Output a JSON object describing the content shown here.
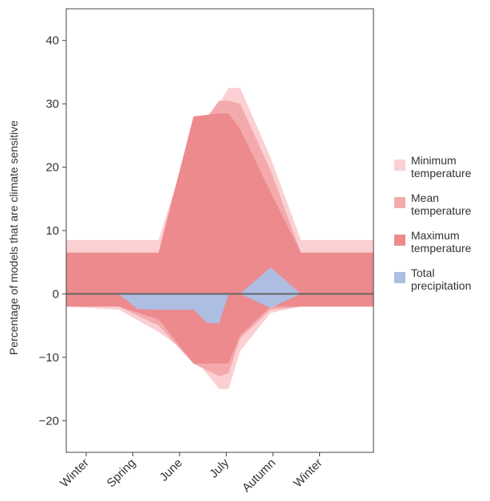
{
  "chart_data": {
    "type": "area",
    "ylabel": "Percentage of models that are climate sensitive",
    "xlabel": "",
    "categories": [
      "Winter",
      "Spring",
      "June",
      "July",
      "Autumn",
      "Winter"
    ],
    "ylim": [
      -25,
      45
    ],
    "yticks": [
      -20,
      -10,
      0,
      10,
      20,
      30,
      40
    ],
    "grid": false,
    "legend_position": "right",
    "zero_line": true,
    "colors": {
      "minimum_temperature": "#fbd0d2",
      "mean_temperature": "#f4aaad",
      "maximum_temperature": "#ec8a8e",
      "total_precipitation": "#aebde2",
      "zero_line": "#666666",
      "frame": "#444444"
    },
    "series": [
      {
        "name": "Minimum temperature",
        "key": "minimum_temperature",
        "x": [
          0,
          0.7,
          1.55,
          2.3,
          2.85,
          3.05,
          3.3,
          3.95,
          4.6,
          5.0,
          5.4
        ],
        "upper": [
          8.5,
          8.5,
          8.5,
          26,
          30,
          32.5,
          32.5,
          21.5,
          8.5,
          8.5,
          8.5
        ],
        "lower": [
          -2,
          -2.5,
          -6,
          -10,
          -15,
          -15,
          -9,
          -3,
          -2,
          -2,
          -2
        ]
      },
      {
        "name": "Mean temperature",
        "key": "mean_temperature",
        "x": [
          0,
          0.7,
          1.55,
          2.3,
          2.85,
          3.05,
          3.3,
          3.95,
          4.6,
          5.0,
          5.4
        ],
        "upper": [
          6.5,
          6.5,
          4.5,
          25,
          30.5,
          30.5,
          30,
          19.5,
          6.5,
          6.5,
          6.5
        ],
        "lower": [
          -2,
          -2,
          -5,
          -11,
          -13,
          -12.5,
          -7,
          -2.5,
          -2,
          -2,
          -2
        ]
      },
      {
        "name": "Maximum temperature",
        "key": "maximum_temperature",
        "x": [
          0,
          0.7,
          1.55,
          2.3,
          2.85,
          3.05,
          3.3,
          3.95,
          4.6,
          5.0,
          5.4
        ],
        "upper": [
          6.5,
          6.5,
          6.5,
          28,
          28.5,
          28.5,
          26,
          16,
          6.5,
          6.5,
          6.5
        ],
        "lower": [
          -2,
          -2,
          -4,
          -11,
          -11,
          -11,
          -6.5,
          -2,
          -2,
          -2,
          -2
        ]
      },
      {
        "name": "Total precipitation",
        "key": "total_precipitation",
        "x": [
          0,
          0.7,
          1.1,
          1.55,
          2.0,
          2.3,
          2.6,
          2.85,
          3.05,
          3.3,
          3.95,
          4.6,
          5.0,
          5.4
        ],
        "upper": [
          0,
          0,
          0,
          0,
          0,
          0,
          0,
          0,
          0,
          0,
          4.2,
          0,
          0,
          0
        ],
        "lower": [
          0,
          0,
          -2.4,
          -2.5,
          -2.5,
          -2.5,
          -4.6,
          -4.6,
          0,
          0,
          -2.2,
          0,
          0,
          0
        ]
      }
    ],
    "legend": [
      {
        "key": "minimum_temperature",
        "lines": [
          "Minimum",
          "temperature"
        ]
      },
      {
        "key": "mean_temperature",
        "lines": [
          "Mean",
          "temperature"
        ]
      },
      {
        "key": "maximum_temperature",
        "lines": [
          "Maximum",
          "temperature"
        ]
      },
      {
        "key": "total_precipitation",
        "lines": [
          "Total",
          "precipitation"
        ]
      }
    ]
  }
}
